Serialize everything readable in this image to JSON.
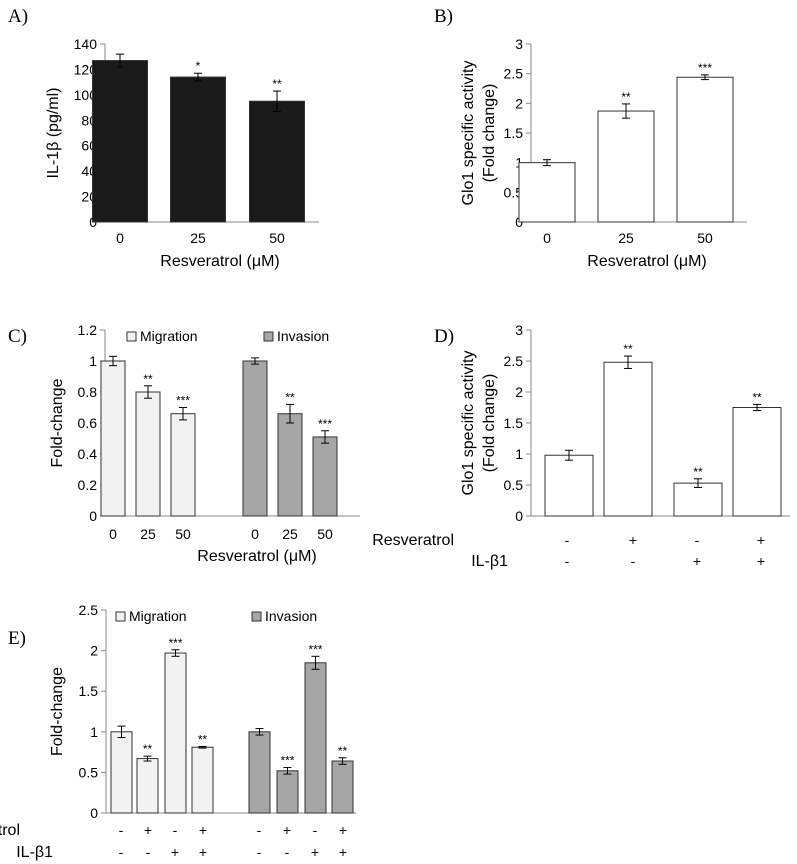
{
  "chart_data": [
    {
      "panel": "A)",
      "type": "bar",
      "categories": [
        "0",
        "25",
        "50"
      ],
      "values": [
        127,
        114,
        95
      ],
      "errors": [
        5,
        3,
        8
      ],
      "significance": [
        "",
        "*",
        "**"
      ],
      "ylabel": "IL-1β (pg/ml)",
      "xlabel": "Resveratrol (μM)",
      "ylim": [
        0,
        140
      ],
      "yticks": [
        "0",
        "20",
        "40",
        "60",
        "80",
        "100",
        "120",
        "140"
      ],
      "bar_color": "#1a1a1a"
    },
    {
      "panel": "B)",
      "type": "bar",
      "categories": [
        "0",
        "25",
        "50"
      ],
      "values": [
        1.0,
        1.87,
        2.44
      ],
      "errors": [
        0.05,
        0.12,
        0.04
      ],
      "significance": [
        "",
        "**",
        "***"
      ],
      "ylabel": "Glo1 specific activity (Fold change)",
      "ylabel_lines": [
        "Glo1 specific activity",
        "(Fold change)"
      ],
      "xlabel": "Resveratrol (μM)",
      "ylim": [
        0,
        3
      ],
      "yticks": [
        "0",
        "0.5",
        "1",
        "1.5",
        "2",
        "2.5",
        "3"
      ],
      "bar_color": "#ffffff"
    },
    {
      "panel": "C)",
      "type": "bar",
      "ylabel": "Fold-change",
      "xlabel": "Resveratrol (μM)",
      "ylim": [
        0,
        1.2
      ],
      "yticks": [
        "0",
        "0.2",
        "0.4",
        "0.6",
        "0.8",
        "1",
        "1.2"
      ],
      "legend_position": "top",
      "series": [
        {
          "name": "Migration",
          "color": "#f2f2f2",
          "categories": [
            "0",
            "25",
            "50"
          ],
          "values": [
            1.0,
            0.8,
            0.66
          ],
          "errors": [
            0.03,
            0.04,
            0.04
          ],
          "significance": [
            "",
            "**",
            "***"
          ]
        },
        {
          "name": "Invasion",
          "color": "#a6a6a6",
          "categories": [
            "0",
            "25",
            "50"
          ],
          "values": [
            1.0,
            0.66,
            0.51
          ],
          "errors": [
            0.02,
            0.06,
            0.04
          ],
          "significance": [
            "",
            "**",
            "***"
          ]
        }
      ]
    },
    {
      "panel": "D)",
      "type": "bar",
      "values": [
        0.98,
        2.48,
        0.53,
        1.75
      ],
      "errors": [
        0.08,
        0.1,
        0.07,
        0.05
      ],
      "significance": [
        "",
        "**",
        "**",
        "**"
      ],
      "ylabel": "Glo1 specific activity (Fold change)",
      "ylabel_lines": [
        "Glo1 specific activity",
        "(Fold change)"
      ],
      "ylim": [
        0,
        3
      ],
      "yticks": [
        "0",
        "0.5",
        "1",
        "1.5",
        "2",
        "2.5",
        "3"
      ],
      "bar_color": "#ffffff",
      "conditions": [
        {
          "label": "Resveratrol",
          "signs": [
            "-",
            "+",
            "-",
            "+"
          ]
        },
        {
          "label": "IL-β1",
          "signs": [
            "-",
            "-",
            "+",
            "+"
          ]
        }
      ]
    },
    {
      "panel": "E)",
      "type": "bar",
      "ylabel": "Fold-change",
      "ylim": [
        0,
        2.5
      ],
      "yticks": [
        "0",
        "0.5",
        "1",
        "1.5",
        "2",
        "2.5"
      ],
      "legend_position": "top",
      "series": [
        {
          "name": "Migration",
          "color": "#f2f2f2",
          "values": [
            1.0,
            0.67,
            1.97,
            0.81
          ],
          "errors": [
            0.07,
            0.03,
            0.04,
            0.01
          ],
          "significance": [
            "",
            "**",
            "***",
            "**"
          ]
        },
        {
          "name": "Invasion",
          "color": "#a6a6a6",
          "values": [
            1.0,
            0.52,
            1.85,
            0.64
          ],
          "errors": [
            0.04,
            0.04,
            0.08,
            0.04
          ],
          "significance": [
            "",
            "***",
            "***",
            "**"
          ]
        }
      ],
      "conditions": [
        {
          "label": "Resveratrol",
          "signs": [
            "-",
            "+",
            "-",
            "+",
            "-",
            "+",
            "-",
            "+"
          ]
        },
        {
          "label": "IL-β1",
          "signs": [
            "-",
            "-",
            "+",
            "+",
            "-",
            "-",
            "+",
            "+"
          ]
        }
      ]
    }
  ]
}
